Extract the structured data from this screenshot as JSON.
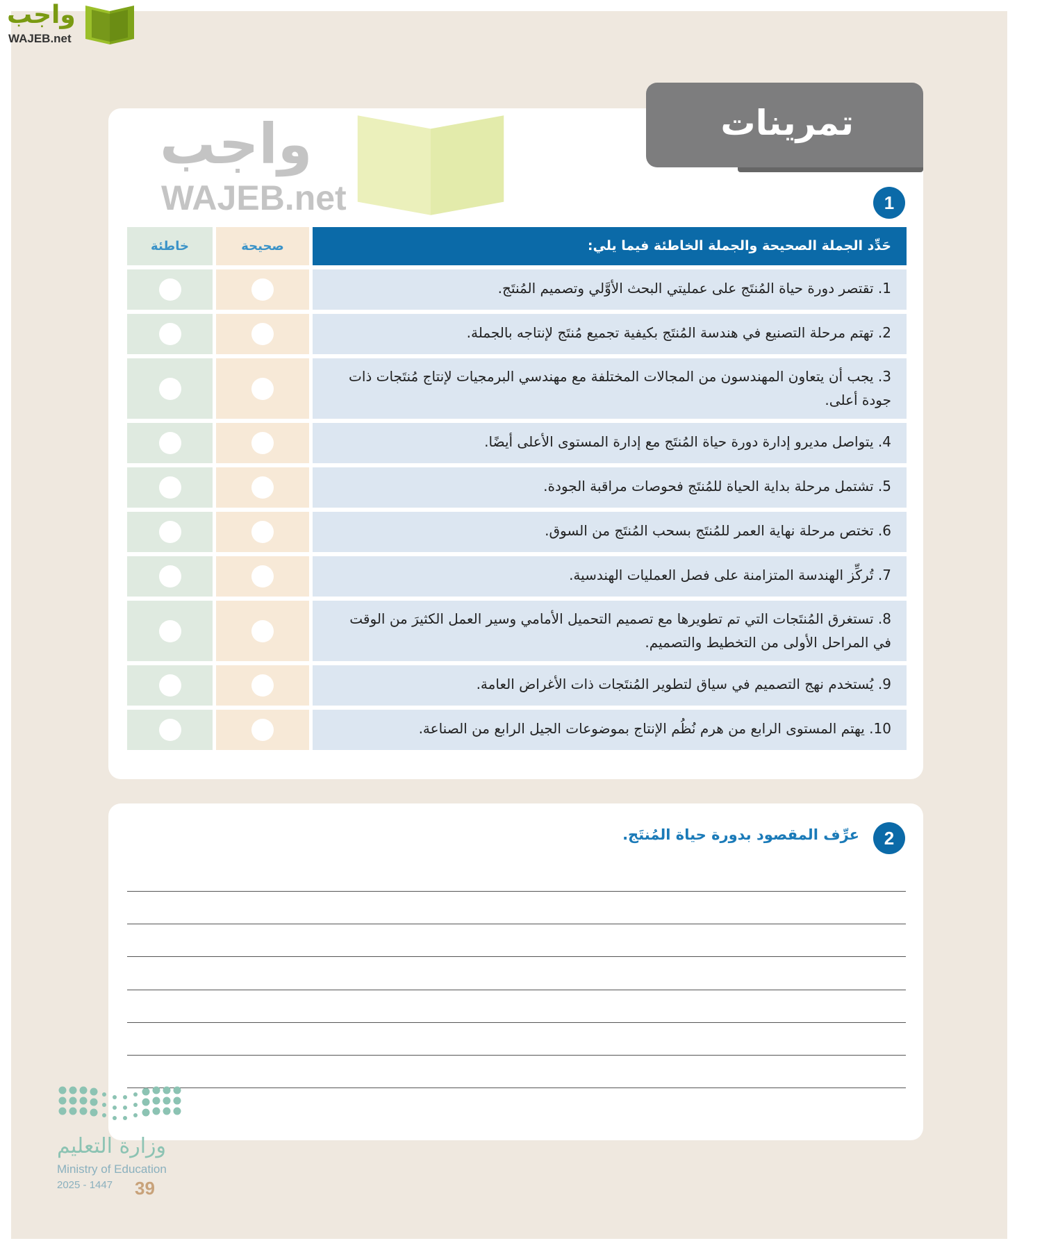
{
  "brand": {
    "logo_ar": "واجب",
    "logo_en": "WAJEB.net",
    "accent": "#0b6aa8"
  },
  "section_title": "تمرينات",
  "exercise1": {
    "number": "1",
    "instruction": "حَدِّد الجملة الصحيحة والجملة الخاطئة فيما يلي:",
    "col_true": "صحيحة",
    "col_false": "خاطئة",
    "items": [
      "1. تقتصر دورة حياة المُنتَج على عمليتي البحث الأوَّلي وتصميم المُنتَج.",
      "2. تهتم مرحلة التصنيع في هندسة المُنتَج بكيفية تجميع مُنتَج لإنتاجه بالجملة.",
      "3. يجب أن يتعاون المهندسون من المجالات المختلفة مع مهندسي البرمجيات لإنتاج مُنتَجات ذات جودة أعلى.",
      "4. يتواصل مديرو إدارة دورة حياة المُنتَج مع إدارة المستوى الأعلى أيضًا.",
      "5. تشتمل مرحلة بداية الحياة للمُنتَج فحوصات مراقبة الجودة.",
      "6. تختص مرحلة نهاية العمر للمُنتَج بسحب المُنتَج من السوق.",
      "7. تُركِّز الهندسة المتزامنة على فصل العمليات الهندسية.",
      "8. تستغرق المُنتَجات التي تم تطويرها مع تصميم التحميل الأمامي وسير العمل الكثيرَ من الوقت في المراحل الأولى من التخطيط والتصميم.",
      "9. يُستخدم نهج التصميم في سياق لتطوير المُنتَجات ذات الأغراض العامة.",
      "10. يهتم المستوى الرابع من هرم نُظُم الإنتاج بموضوعات الجيل الرابع من الصناعة."
    ]
  },
  "exercise2": {
    "number": "2",
    "question": "عرِّف المقصود بدورة حياة المُنتَج."
  },
  "watermark": {
    "ar": "واجب",
    "en": "WAJEB.net"
  },
  "footer": {
    "ministry_ar": "وزارة التعليم",
    "ministry_en": "Ministry of Education",
    "year": "2025 - 1447",
    "page_number": "39"
  }
}
